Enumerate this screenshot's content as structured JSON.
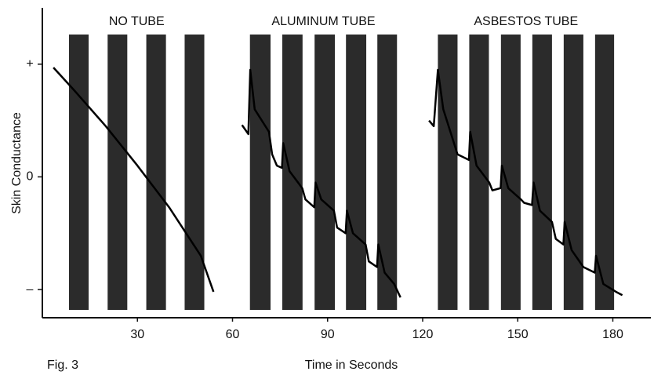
{
  "chart_data": {
    "type": "line",
    "caption": "Fig. 3",
    "xlabel": "Time in Seconds",
    "ylabel": "Skin Conductance",
    "xlim": [
      0,
      192
    ],
    "xticks": [
      30,
      60,
      90,
      120,
      150,
      180
    ],
    "ylim": [
      -1.25,
      1.5
    ],
    "yticks": [
      {
        "value": 1,
        "label": "+"
      },
      0,
      {
        "value": -1,
        "label": "–"
      }
    ],
    "band_color": "#2b2b2b",
    "bands": [
      {
        "label": "NO TUBE",
        "intervals": [
          [
            8.4,
            14.6
          ],
          [
            20.6,
            26.8
          ],
          [
            32.8,
            39
          ],
          [
            44.9,
            51.1
          ]
        ]
      },
      {
        "label": "ALUMINUM TUBE",
        "intervals": [
          [
            65.5,
            72
          ],
          [
            75.7,
            82.1
          ],
          [
            85.9,
            92.3
          ],
          [
            95.8,
            102.2
          ],
          [
            105.7,
            111.9
          ]
        ]
      },
      {
        "label": "ASBESTOS TUBE",
        "intervals": [
          [
            124.8,
            131
          ],
          [
            134.7,
            140.9
          ],
          [
            144.7,
            150.9
          ],
          [
            154.6,
            160.8
          ],
          [
            164.5,
            170.7
          ],
          [
            174.4,
            180.4
          ]
        ]
      }
    ],
    "series": [
      {
        "color": "#000000",
        "x": [
          3.5,
          10,
          20,
          30,
          40,
          50,
          54
        ],
        "values": [
          0.97,
          0.77,
          0.45,
          0.1,
          -0.27,
          -0.7,
          -1.02
        ]
      },
      {
        "color": "#000000",
        "x": [
          63,
          65,
          65.6,
          67,
          71.5,
          72.5,
          74,
          75.6,
          76,
          78,
          82,
          83,
          85.8,
          86.2,
          88,
          92,
          93,
          95.7,
          96.1,
          98,
          102,
          103,
          105.6,
          106,
          108,
          111,
          113
        ],
        "values": [
          0.46,
          0.38,
          0.95,
          0.6,
          0.4,
          0.2,
          0.1,
          0.08,
          0.3,
          0.05,
          -0.1,
          -0.2,
          -0.27,
          -0.05,
          -0.2,
          -0.3,
          -0.45,
          -0.5,
          -0.3,
          -0.5,
          -0.6,
          -0.75,
          -0.8,
          -0.6,
          -0.85,
          -0.95,
          -1.07
        ]
      },
      {
        "color": "#000000",
        "x": [
          122,
          123.5,
          124.8,
          126.5,
          131,
          134.6,
          135,
          137,
          141,
          142,
          144.6,
          145,
          147,
          151,
          152,
          154.5,
          155,
          157,
          160.8,
          162,
          164.4,
          164.8,
          167,
          170.7,
          174.3,
          174.7,
          177,
          181,
          183
        ],
        "values": [
          0.5,
          0.45,
          0.95,
          0.6,
          0.2,
          0.15,
          0.4,
          0.1,
          -0.05,
          -0.12,
          -0.1,
          0.1,
          -0.1,
          -0.2,
          -0.23,
          -0.25,
          -0.05,
          -0.3,
          -0.4,
          -0.55,
          -0.6,
          -0.4,
          -0.65,
          -0.8,
          -0.85,
          -0.7,
          -0.95,
          -1.02,
          -1.05
        ]
      }
    ]
  }
}
